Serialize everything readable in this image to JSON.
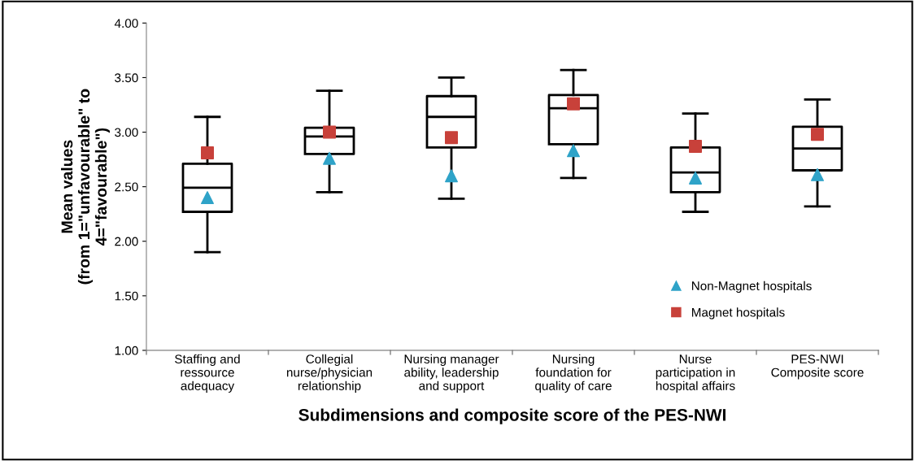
{
  "chart_data": {
    "type": "box",
    "xlabel": "Subdimensions and composite score of the PES-NWI",
    "ylabel": "Mean values\n(from 1=\"unfavourable\" to\n4=\"favourable\")",
    "categories": [
      "Staffing and\nressource\nadequacy",
      "Collegial\nnurse/physician\nrelationship",
      "Nursing manager\nability, leadership\nand support",
      "Nursing\nfoundation for\nquality of care",
      "Nurse\nparticipation in\nhospital affairs",
      "PES-NWI\nComposite score"
    ],
    "boxes": [
      {
        "low": 1.9,
        "q1": 2.27,
        "median": 2.49,
        "q3": 2.71,
        "high": 3.14
      },
      {
        "low": 2.45,
        "q1": 2.8,
        "median": 2.96,
        "q3": 3.04,
        "high": 3.38
      },
      {
        "low": 2.39,
        "q1": 2.86,
        "median": 3.14,
        "q3": 3.33,
        "high": 3.5
      },
      {
        "low": 2.58,
        "q1": 2.89,
        "median": 3.22,
        "q3": 3.34,
        "high": 3.57
      },
      {
        "low": 2.27,
        "q1": 2.45,
        "median": 2.63,
        "q3": 2.86,
        "high": 3.17
      },
      {
        "low": 2.32,
        "q1": 2.65,
        "median": 2.85,
        "q3": 3.05,
        "high": 3.3
      }
    ],
    "series": [
      {
        "type": "scatter",
        "name": "Non-Magnet hospitals",
        "color": "#2fa3c8",
        "marker": "triangle",
        "x": [
          "Staffing and\nressource\nadequacy",
          "Collegial\nnurse/physician\nrelationship",
          "Nursing manager\nability, leadership\nand support",
          "Nursing\nfoundation for\nquality of care",
          "Nurse\nparticipation in\nhospital affairs",
          "PES-NWI\nComposite score"
        ],
        "values": [
          2.4,
          2.76,
          2.6,
          2.83,
          2.58,
          2.61
        ]
      },
      {
        "type": "scatter",
        "name": "Magnet hospitals",
        "color": "#c8413a",
        "marker": "square",
        "x": [
          "Staffing and\nressource\nadequacy",
          "Collegial\nnurse/physician\nrelationship",
          "Nursing manager\nability, leadership\nand support",
          "Nursing\nfoundation for\nquality of care",
          "Nurse\nparticipation in\nhospital affairs",
          "PES-NWI\nComposite score"
        ],
        "values": [
          2.81,
          3.0,
          2.95,
          3.26,
          2.87,
          2.98
        ]
      }
    ],
    "ylim": [
      1.0,
      4.0
    ],
    "yticks": [
      {
        "value": 1.0,
        "label": "1.00"
      },
      {
        "value": 1.5,
        "label": "1.50"
      },
      {
        "value": 2.0,
        "label": "2.00"
      },
      {
        "value": 2.5,
        "label": "2.50"
      },
      {
        "value": 3.0,
        "label": "3.00"
      },
      {
        "value": 3.5,
        "label": "3.50"
      },
      {
        "value": 4.0,
        "label": "4.00"
      }
    ],
    "grid": false,
    "legend": "bottom right"
  }
}
